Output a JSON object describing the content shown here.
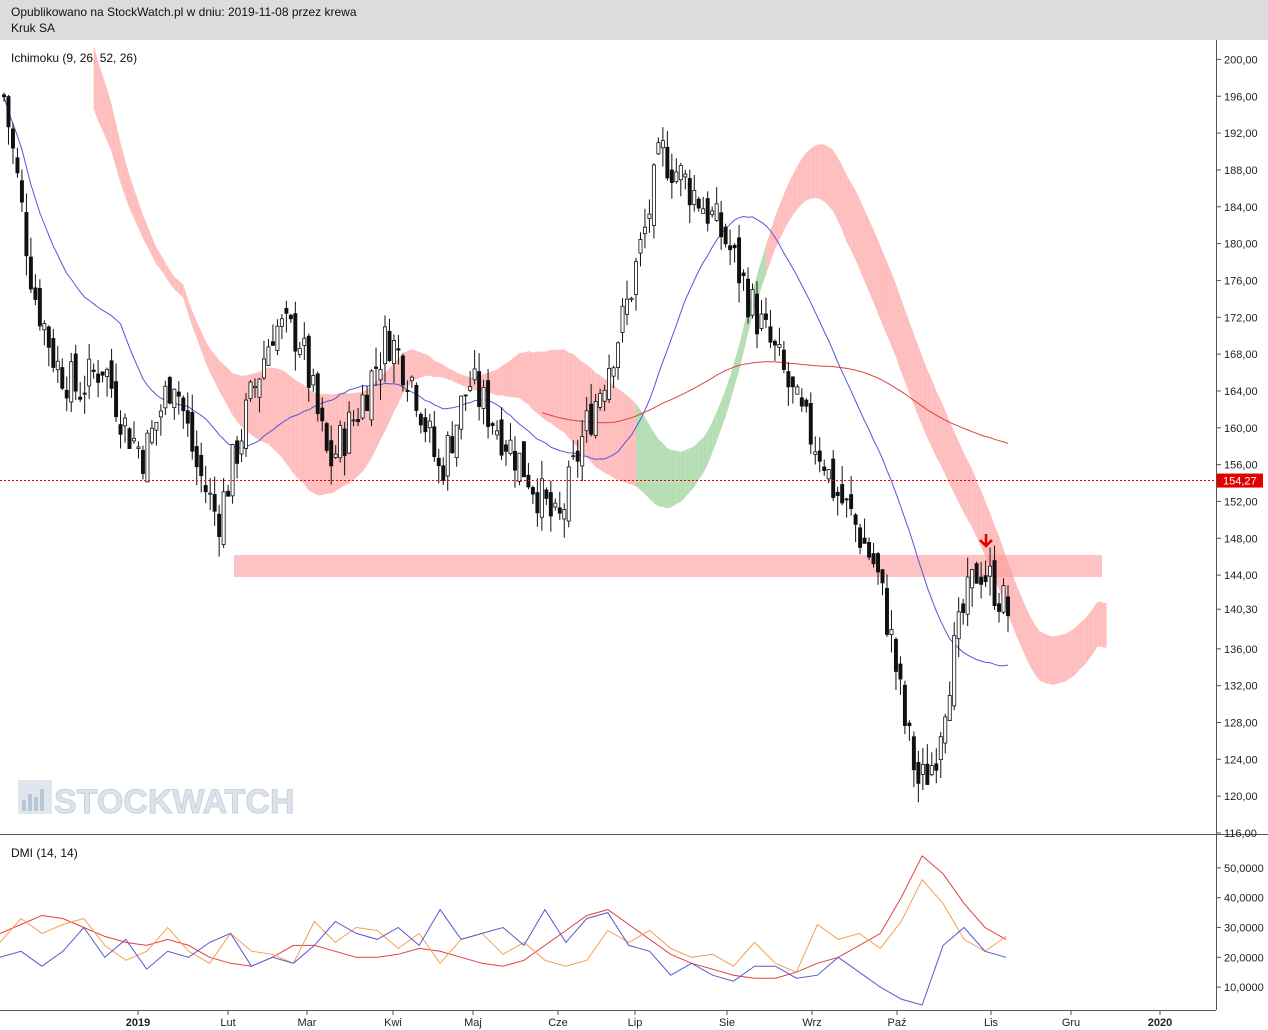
{
  "header": {
    "published": "Opublikowano na StockWatch.pl w dniu: 2019-11-08 przez krewa",
    "instrument": "Kruk SA"
  },
  "watermark": "STOCKWATCH",
  "chart_data": [
    {
      "type": "candlestick",
      "title": "Ichimoku (9, 26, 52, 26)",
      "ylim": [
        116,
        202
      ],
      "y_ticks": [
        "200,00",
        "196,00",
        "192,00",
        "188,00",
        "184,00",
        "180,00",
        "176,00",
        "172,00",
        "168,00",
        "164,00",
        "160,00",
        "156,00",
        "152,00",
        "148,00",
        "144,00",
        "140,30",
        "136,00",
        "132,00",
        "128,00",
        "124,00",
        "120,00",
        "116,00"
      ],
      "x_ticks": [
        "2019",
        "Lut",
        "Mar",
        "Kwi",
        "Maj",
        "Cze",
        "Lip",
        "Sie",
        "Wrz",
        "Paź",
        "Lis",
        "Gru",
        "2020"
      ],
      "current_price_label": "154,27",
      "current_price": 154.27,
      "support_zone": [
        143.8,
        146.2
      ],
      "colors": {
        "bullish_cloud": "#a8d8a8",
        "bearish_cloud": "#ffb3b3",
        "line_blue": "#5555dd",
        "line_red": "#e04040",
        "zone": "#ff9999",
        "arrow": "#e00000",
        "price_tag": "#e00000"
      }
    },
    {
      "type": "line",
      "title": "DMI (14, 14)",
      "ylim": [
        3,
        60
      ],
      "y_ticks": [
        "50,0000",
        "40,0000",
        "30,0000",
        "20,0000",
        "10,0000"
      ],
      "series": [
        {
          "color": "#e04040",
          "values": [
            28,
            31,
            34,
            33,
            30,
            27,
            25,
            24,
            26,
            24,
            20,
            18,
            17,
            20,
            24,
            24,
            22,
            20,
            20,
            21,
            23,
            22,
            20,
            18,
            17,
            19,
            24,
            29,
            34,
            36,
            31,
            26,
            21,
            18,
            16,
            14,
            13,
            13,
            15,
            18,
            20,
            24,
            28,
            40,
            54,
            48,
            38,
            30,
            26
          ]
        },
        {
          "color": "#f5a050",
          "values": [
            25,
            33,
            28,
            31,
            33,
            24,
            19,
            22,
            30,
            22,
            18,
            28,
            22,
            21,
            18,
            32,
            25,
            30,
            29,
            23,
            28,
            18,
            26,
            28,
            21,
            25,
            19,
            17,
            19,
            29,
            25,
            29,
            23,
            20,
            21,
            17,
            25,
            18,
            15,
            31,
            26,
            28,
            23,
            32,
            46,
            38,
            26,
            22,
            27
          ]
        },
        {
          "color": "#5858d0",
          "values": [
            20,
            22,
            17,
            22,
            30,
            20,
            26,
            16,
            22,
            20,
            25,
            28,
            17,
            20,
            18,
            24,
            32,
            28,
            26,
            30,
            24,
            36,
            26,
            28,
            30,
            24,
            36,
            25,
            33,
            35,
            24,
            22,
            14,
            18,
            14,
            12,
            17,
            17,
            13,
            14,
            20,
            15,
            10,
            6,
            4,
            24,
            30,
            22,
            20
          ]
        }
      ]
    }
  ]
}
